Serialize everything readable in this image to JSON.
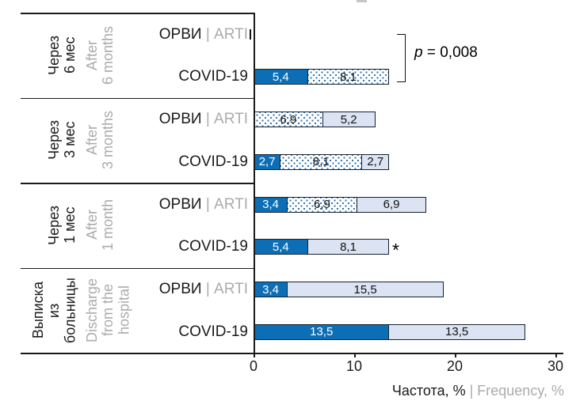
{
  "chart_data": {
    "type": "bar",
    "orientation": "horizontal",
    "stacked": true,
    "xlabel_primary": "Частота, %",
    "xlabel_secondary": " | Frequency, %",
    "x_ticks": [
      0,
      10,
      20,
      30
    ],
    "xlim": [
      0,
      30.7
    ],
    "grid": false,
    "legend": "none",
    "series_styles": [
      {
        "id": "dark",
        "meaning": "solid dark blue segment",
        "fill": "#0c6fb6",
        "text_color": "#ffffff"
      },
      {
        "id": "dot",
        "meaning": "blue dotted pattern segment",
        "fill": "white with blue dots",
        "text_color": "#111111"
      },
      {
        "id": "light",
        "meaning": "light blue segment",
        "fill": "#dce3f2",
        "text_color": "#111111"
      }
    ],
    "groups": [
      {
        "label_ru": "Через\n6 мес",
        "label_en": "After\n6 months",
        "rows": [
          {
            "label_main": "ОРВИ",
            "label_suffix": " | ARTI",
            "zero_stub": true,
            "segments": []
          },
          {
            "label_main": "COVID-19",
            "label_suffix": "",
            "zero_stub": false,
            "segments": [
              {
                "value": 5.4,
                "label": "5,4",
                "style": "dark"
              },
              {
                "value": 8.1,
                "label": "8,1",
                "style": "dot"
              }
            ]
          }
        ]
      },
      {
        "label_ru": "Через\n3 мес",
        "label_en": "After\n3 months",
        "rows": [
          {
            "label_main": "ОРВИ",
            "label_suffix": " | ARTI",
            "zero_stub": false,
            "segments": [
              {
                "value": 6.9,
                "label": "6,9",
                "style": "dot"
              },
              {
                "value": 5.2,
                "label": "5,2",
                "style": "light"
              }
            ]
          },
          {
            "label_main": "COVID-19",
            "label_suffix": "",
            "zero_stub": false,
            "segments": [
              {
                "value": 2.7,
                "label": "2,7",
                "style": "dark"
              },
              {
                "value": 8.1,
                "label": "8,1",
                "style": "dot"
              },
              {
                "value": 2.7,
                "label": "2,7",
                "style": "light"
              }
            ]
          }
        ]
      },
      {
        "label_ru": "Через\n1 мес",
        "label_en": "After\n1 month",
        "rows": [
          {
            "label_main": "ОРВИ",
            "label_suffix": " | ARTI",
            "zero_stub": false,
            "segments": [
              {
                "value": 3.4,
                "label": "3,4",
                "style": "dark"
              },
              {
                "value": 6.9,
                "label": "6,9",
                "style": "dot"
              },
              {
                "value": 6.9,
                "label": "6,9",
                "style": "light"
              }
            ]
          },
          {
            "label_main": "COVID-19",
            "label_suffix": "",
            "zero_stub": false,
            "segments": [
              {
                "value": 5.4,
                "label": "5,4",
                "style": "dark"
              },
              {
                "value": 8.1,
                "label": "8,1",
                "style": "light"
              }
            ]
          }
        ]
      },
      {
        "label_ru": "Выписка\nиз\nбольницы",
        "label_en": "Discharge\nfrom the\nhospital",
        "rows": [
          {
            "label_main": "ОРВИ",
            "label_suffix": " | ARTI",
            "zero_stub": false,
            "segments": [
              {
                "value": 3.4,
                "label": "3,4",
                "style": "dark"
              },
              {
                "value": 15.5,
                "label": "15,5",
                "style": "light"
              }
            ]
          },
          {
            "label_main": "COVID-19",
            "label_suffix": "",
            "zero_stub": false,
            "segments": [
              {
                "value": 13.5,
                "label": "13,5",
                "style": "dark"
              },
              {
                "value": 13.5,
                "label": "13,5",
                "style": "light"
              }
            ]
          }
        ]
      }
    ],
    "annotations": {
      "p_bracket": {
        "symbol": "p",
        "rest": " = 0,008",
        "applies_to": "Через 6 мес: ОРВИ vs COVID-19"
      },
      "asterisk": {
        "text": "*",
        "applies_to": "Через 1 мес: COVID-19"
      }
    }
  },
  "colors": {
    "dark_blue": "#0c6fb6",
    "light_blue": "#dce3f2",
    "dot_blue": "#2e75b6",
    "gray_text": "#ababab",
    "axis_line": "#1a1a1a"
  }
}
